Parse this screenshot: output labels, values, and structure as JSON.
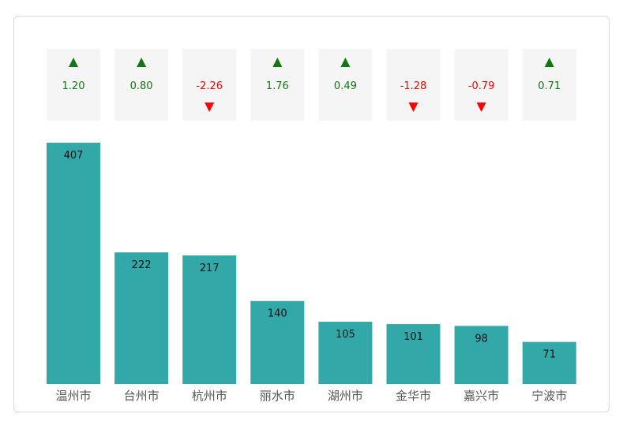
{
  "chart_data": {
    "type": "bar",
    "title": "",
    "xlabel": "",
    "ylabel": "",
    "categories": [
      "温州市",
      "台州市",
      "杭州市",
      "丽水市",
      "湖州市",
      "金华市",
      "嘉兴市",
      "宁波市"
    ],
    "values": [
      407,
      222,
      217,
      140,
      105,
      101,
      98,
      71
    ],
    "changes": [
      "1.20",
      "0.80",
      "-2.26",
      "1.76",
      "0.49",
      "-1.28",
      "-0.79",
      "0.71"
    ],
    "ylim": [
      0,
      407
    ],
    "grid": false,
    "legend": "none"
  },
  "colors": {
    "bar": "#33a8a8",
    "up": "#117711",
    "down": "#ff0000",
    "indicator_bg": "#f5f5f5",
    "category_text": "#555555",
    "value_text": "#111111"
  }
}
